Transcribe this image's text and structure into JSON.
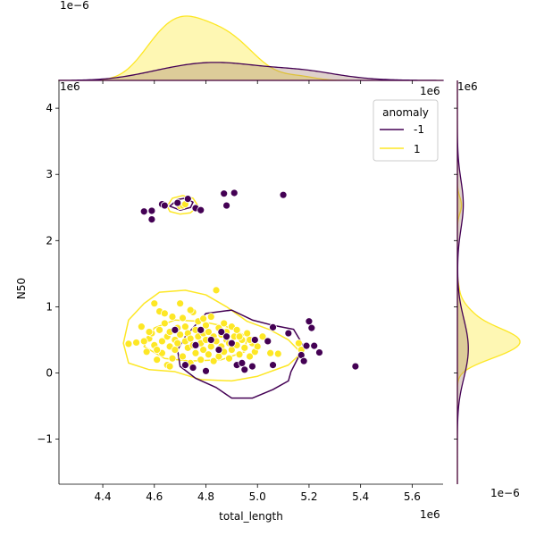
{
  "chart_data": {
    "type": "scatter",
    "xlabel": "total_length",
    "ylabel": "N50",
    "x_offset_text": "1e6",
    "y_offset_text": "1e6",
    "top_marginal_offset_text": "1e−6",
    "right_marginal_offset_text": "1e−6",
    "xlim": [
      4.23,
      5.72
    ],
    "ylim": [
      -1.68,
      4.42
    ],
    "x_ticks": [
      4.4,
      4.6,
      4.8,
      5.0,
      5.2,
      5.4,
      5.6
    ],
    "x_tick_labels": [
      "4.4",
      "4.6",
      "4.8",
      "5.0",
      "5.2",
      "5.4",
      "5.6"
    ],
    "y_ticks": [
      -1,
      0,
      1,
      2,
      3,
      4
    ],
    "y_tick_labels": [
      "−1",
      "0",
      "1",
      "2",
      "3",
      "4"
    ],
    "legend": {
      "title": "anomaly",
      "placement": "top-right",
      "entries": [
        "-1",
        "1"
      ]
    },
    "colors": {
      "-1": "#440154",
      "1": "#fde725",
      "marginal_fill_outlier": "#d6c4a0",
      "marginal_fill_normal": "#fdf6c4"
    },
    "series": [
      {
        "name": "-1",
        "points": [
          [
            4.56,
            2.44
          ],
          [
            4.59,
            2.45
          ],
          [
            4.59,
            2.32
          ],
          [
            4.63,
            2.55
          ],
          [
            4.64,
            2.53
          ],
          [
            4.73,
            2.63
          ],
          [
            4.76,
            2.49
          ],
          [
            4.78,
            2.46
          ],
          [
            4.87,
            2.71
          ],
          [
            4.88,
            2.53
          ],
          [
            4.91,
            2.72
          ],
          [
            5.1,
            2.69
          ],
          [
            4.69,
            2.57
          ],
          [
            4.68,
            0.65
          ],
          [
            4.78,
            0.65
          ],
          [
            4.86,
            0.62
          ],
          [
            4.88,
            0.55
          ],
          [
            4.72,
            0.12
          ],
          [
            4.75,
            0.08
          ],
          [
            4.8,
            0.03
          ],
          [
            4.85,
            0.35
          ],
          [
            4.92,
            0.12
          ],
          [
            4.95,
            0.05
          ],
          [
            4.99,
            0.5
          ],
          [
            5.04,
            0.48
          ],
          [
            5.06,
            0.12
          ],
          [
            5.06,
            0.69
          ],
          [
            5.12,
            0.6
          ],
          [
            5.17,
            0.27
          ],
          [
            5.18,
            0.18
          ],
          [
            5.19,
            0.41
          ],
          [
            5.2,
            0.78
          ],
          [
            5.21,
            0.68
          ],
          [
            5.22,
            0.41
          ],
          [
            5.24,
            0.31
          ],
          [
            5.38,
            0.1
          ],
          [
            4.82,
            0.5
          ],
          [
            4.9,
            0.45
          ],
          [
            4.76,
            0.42
          ],
          [
            4.94,
            0.15
          ],
          [
            4.98,
            0.1
          ]
        ]
      },
      {
        "name": "1",
        "points": [
          [
            4.5,
            0.44
          ],
          [
            4.53,
            0.46
          ],
          [
            4.55,
            0.7
          ],
          [
            4.57,
            0.32
          ],
          [
            4.58,
            0.52
          ],
          [
            4.59,
            0.6
          ],
          [
            4.6,
            1.05
          ],
          [
            4.6,
            0.42
          ],
          [
            4.61,
            0.2
          ],
          [
            4.62,
            0.93
          ],
          [
            4.62,
            0.65
          ],
          [
            4.63,
            0.48
          ],
          [
            4.63,
            0.3
          ],
          [
            4.64,
            0.9
          ],
          [
            4.64,
            0.75
          ],
          [
            4.65,
            0.55
          ],
          [
            4.65,
            0.12
          ],
          [
            4.66,
            0.4
          ],
          [
            4.66,
            0.62
          ],
          [
            4.67,
            0.22
          ],
          [
            4.67,
            0.85
          ],
          [
            4.68,
            0.5
          ],
          [
            4.68,
            0.35
          ],
          [
            4.69,
            0.68
          ],
          [
            4.69,
            0.45
          ],
          [
            4.7,
            1.05
          ],
          [
            4.7,
            0.58
          ],
          [
            4.71,
            0.83
          ],
          [
            4.71,
            0.25
          ],
          [
            4.72,
            0.48
          ],
          [
            4.72,
            0.7
          ],
          [
            4.73,
            0.38
          ],
          [
            4.73,
            0.6
          ],
          [
            4.74,
            0.52
          ],
          [
            4.74,
            0.15
          ],
          [
            4.75,
            0.92
          ],
          [
            4.75,
            0.42
          ],
          [
            4.76,
            0.65
          ],
          [
            4.76,
            0.3
          ],
          [
            4.77,
            0.55
          ],
          [
            4.77,
            0.78
          ],
          [
            4.78,
            0.2
          ],
          [
            4.78,
            0.45
          ],
          [
            4.79,
            0.6
          ],
          [
            4.79,
            0.35
          ],
          [
            4.8,
            0.72
          ],
          [
            4.8,
            0.5
          ],
          [
            4.81,
            0.28
          ],
          [
            4.81,
            0.62
          ],
          [
            4.82,
            0.4
          ],
          [
            4.82,
            0.85
          ],
          [
            4.83,
            0.55
          ],
          [
            4.83,
            0.18
          ],
          [
            4.84,
            1.25
          ],
          [
            4.84,
            0.48
          ],
          [
            4.85,
            0.68
          ],
          [
            4.85,
            0.25
          ],
          [
            4.86,
            0.58
          ],
          [
            4.86,
            0.4
          ],
          [
            4.87,
            0.75
          ],
          [
            4.87,
            0.32
          ],
          [
            4.88,
            0.5
          ],
          [
            4.88,
            0.62
          ],
          [
            4.89,
            0.22
          ],
          [
            4.89,
            0.45
          ],
          [
            4.9,
            0.7
          ],
          [
            4.9,
            0.35
          ],
          [
            4.91,
            0.55
          ],
          [
            4.92,
            0.42
          ],
          [
            4.92,
            0.65
          ],
          [
            4.93,
            0.28
          ],
          [
            4.94,
            0.5
          ],
          [
            4.95,
            0.38
          ],
          [
            4.96,
            0.6
          ],
          [
            4.97,
            0.25
          ],
          [
            4.98,
            0.45
          ],
          [
            4.99,
            0.32
          ],
          [
            5.0,
            0.4
          ],
          [
            5.02,
            0.55
          ],
          [
            5.05,
            0.3
          ],
          [
            5.08,
            0.29
          ],
          [
            5.16,
            0.45
          ],
          [
            5.17,
            0.35
          ],
          [
            4.7,
            2.52
          ],
          [
            4.71,
            2.53
          ],
          [
            4.72,
            2.55
          ],
          [
            4.74,
            0.95
          ],
          [
            4.79,
            0.82
          ],
          [
            4.66,
            0.1
          ],
          [
            4.61,
            0.35
          ],
          [
            4.56,
            0.48
          ],
          [
            4.58,
            0.62
          ],
          [
            4.93,
            0.55
          ],
          [
            4.97,
            0.5
          ]
        ]
      }
    ]
  }
}
